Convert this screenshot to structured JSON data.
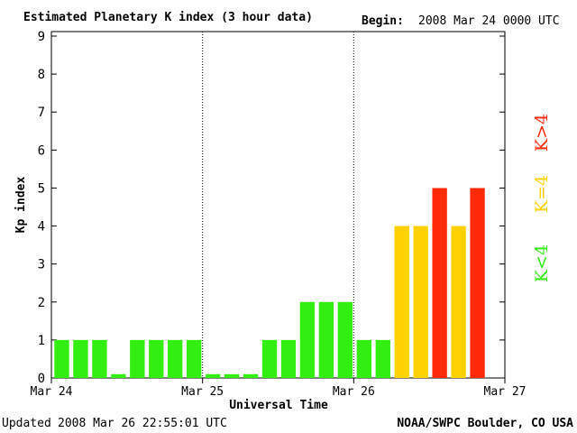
{
  "header": {
    "title": "Estimated Planetary K index (3 hour data)",
    "begin_label": "Begin:",
    "begin_value": "2008 Mar 24 0000 UTC"
  },
  "footer": {
    "updated_label": "Updated",
    "updated_value": "2008 Mar 26 22:55:01 UTC",
    "source": "NOAA/SWPC Boulder, CO USA"
  },
  "legend": {
    "low": "K<4",
    "mid": "K=4",
    "high": "K>4"
  },
  "colors": {
    "low": "#33ee11",
    "mid": "#ffd200",
    "high": "#ff2a0a",
    "axis": "#000000"
  },
  "chart_data": {
    "type": "bar",
    "xlabel": "Universal Time",
    "ylabel": "Kp index",
    "ylim": [
      0,
      9
    ],
    "y_ticks": [
      0,
      1,
      2,
      3,
      4,
      5,
      6,
      7,
      8,
      9
    ],
    "x_ticks": [
      "Mar 24",
      "Mar 25",
      "Mar 26",
      "Mar 27"
    ],
    "day_separators": [
      "Mar 25",
      "Mar 26"
    ],
    "interval_hours": 3,
    "values": [
      1,
      1,
      1,
      0.1,
      1,
      1,
      1,
      1,
      0.1,
      0.1,
      0.1,
      1,
      1,
      2,
      2,
      2,
      1,
      1,
      4,
      4,
      5,
      4,
      5
    ],
    "grid": false
  }
}
